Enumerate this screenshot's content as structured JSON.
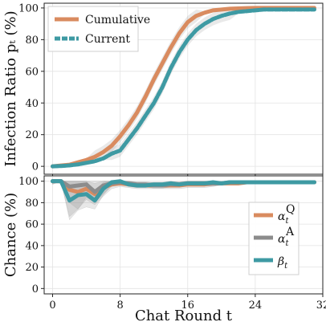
{
  "chart_data": [
    {
      "type": "line",
      "panel": "top",
      "ylabel": "Infection Ratio pₜ (%)",
      "xlabel": "",
      "xlim": [
        -1,
        32
      ],
      "ylim": [
        -5,
        103
      ],
      "yticks": [
        0,
        20,
        40,
        60,
        80,
        100
      ],
      "xticks": [
        0,
        8,
        16,
        24,
        32
      ],
      "grid": true,
      "legend_position": "top-left",
      "series": [
        {
          "name": "Cumulative",
          "color": "#D98B5F",
          "x": [
            0,
            1,
            2,
            3,
            4,
            5,
            6,
            7,
            8,
            9,
            10,
            11,
            12,
            13,
            14,
            15,
            16,
            17,
            18,
            19,
            20,
            21,
            22,
            23,
            24,
            25,
            26,
            27,
            28,
            29,
            30,
            31
          ],
          "y": [
            0,
            0.5,
            1,
            2.5,
            4,
            6,
            9,
            13,
            19,
            26,
            34,
            44,
            55,
            65,
            75,
            84,
            91,
            95,
            97,
            98.5,
            99,
            99.5,
            99.7,
            99.9,
            100,
            100,
            100,
            100,
            100,
            100,
            100,
            100
          ]
        },
        {
          "name": "Current",
          "color": "#3E9AA3",
          "x": [
            0,
            1,
            2,
            3,
            4,
            5,
            6,
            7,
            8,
            9,
            10,
            11,
            12,
            13,
            14,
            15,
            16,
            17,
            18,
            19,
            20,
            21,
            22,
            23,
            24,
            25,
            26,
            27,
            28,
            29,
            30,
            31
          ],
          "y": [
            0,
            0.2,
            0.6,
            1.2,
            2.2,
            3.2,
            5,
            8,
            10,
            17,
            24,
            32,
            40,
            50,
            62,
            72,
            80,
            86,
            90,
            93,
            95,
            96.5,
            97.5,
            98,
            98.5,
            99,
            99,
            99,
            99,
            99,
            99,
            99
          ]
        }
      ]
    },
    {
      "type": "line",
      "panel": "bottom",
      "ylabel": "Chance (%)",
      "xlabel": "Chat Round t",
      "xlim": [
        -1,
        32
      ],
      "ylim": [
        -5,
        105
      ],
      "yticks": [
        0,
        20,
        40,
        60,
        80,
        100
      ],
      "xticks": [
        0,
        8,
        16,
        24,
        32
      ],
      "grid": true,
      "legend_position": "bottom-right",
      "series": [
        {
          "name": "α_t^Q",
          "legend_main": "α",
          "legend_sub": "t",
          "legend_sup": "Q",
          "color": "#D98B5F",
          "x": [
            0,
            1,
            2,
            3,
            4,
            5,
            6,
            7,
            8,
            9,
            10,
            11,
            12,
            13,
            14,
            15,
            16,
            17,
            18,
            19,
            20,
            21,
            22,
            23,
            24,
            25,
            26,
            27,
            28,
            29,
            30,
            31
          ],
          "y": [
            100,
            100,
            92,
            90,
            93,
            88,
            94,
            97,
            98,
            97,
            96,
            96,
            96,
            96,
            96,
            96,
            97,
            97,
            97,
            98,
            98,
            98,
            98,
            99,
            99,
            99,
            99,
            99,
            99,
            99,
            99,
            99
          ]
        },
        {
          "name": "α_t^A",
          "legend_main": "α",
          "legend_sub": "t",
          "legend_sup": "A",
          "color": "#8C8C8C",
          "x": [
            0,
            1,
            2,
            3,
            4,
            5,
            6,
            7,
            8,
            9,
            10,
            11,
            12,
            13,
            14,
            15,
            16,
            17,
            18,
            19,
            20,
            21,
            22,
            23,
            24,
            25,
            26,
            27,
            28,
            29,
            30,
            31
          ],
          "y": [
            100,
            100,
            95,
            96,
            97,
            90,
            96,
            98,
            99,
            98,
            97,
            97,
            96,
            96,
            97,
            97,
            98,
            98,
            98,
            98,
            98,
            99,
            99,
            99,
            99,
            99,
            99,
            99,
            99,
            99,
            99,
            99
          ]
        },
        {
          "name": "β_t",
          "legend_main": "β",
          "legend_sub": "t",
          "legend_sup": "",
          "color": "#3E9AA3",
          "x": [
            0,
            1,
            2,
            3,
            4,
            5,
            6,
            7,
            8,
            9,
            10,
            11,
            12,
            13,
            14,
            15,
            16,
            17,
            18,
            19,
            20,
            21,
            22,
            23,
            24,
            25,
            26,
            27,
            28,
            29,
            30,
            31
          ],
          "y": [
            100,
            100,
            82,
            87,
            88,
            82,
            93,
            99,
            100,
            97,
            96,
            96,
            97,
            97,
            98,
            97,
            98,
            98,
            98,
            99,
            98,
            99,
            99,
            99,
            99,
            99,
            99,
            99,
            99,
            99,
            99,
            99
          ]
        }
      ]
    }
  ]
}
